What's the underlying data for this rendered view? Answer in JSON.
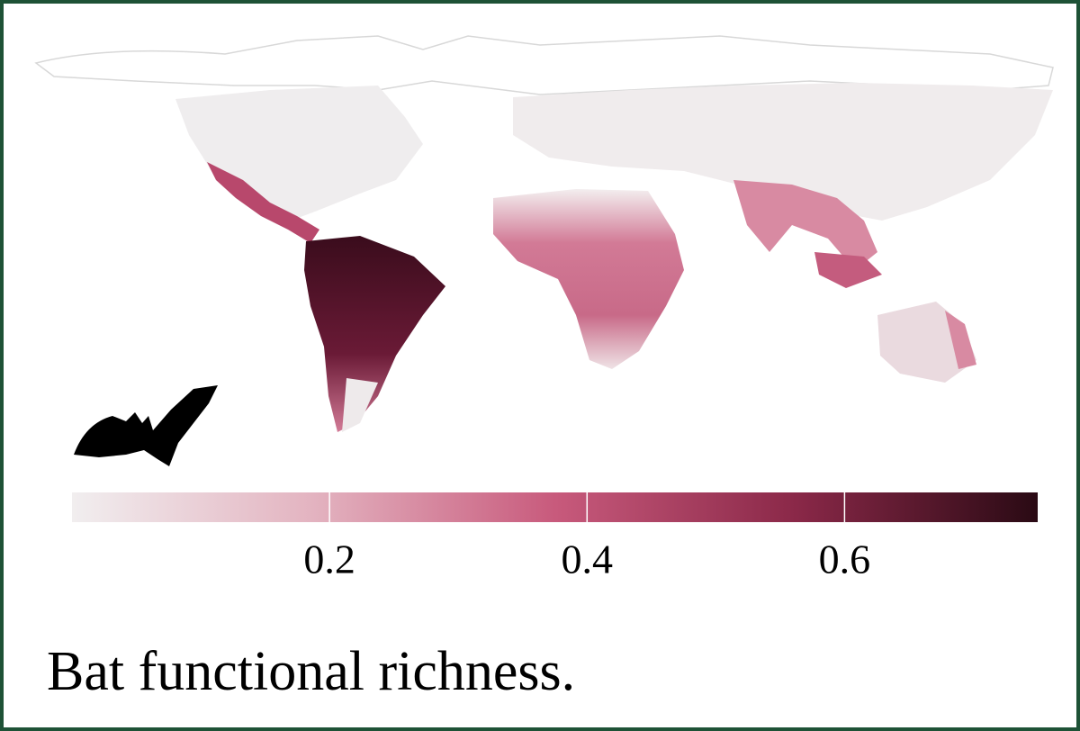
{
  "map": {
    "title": "Bat functional richness.",
    "colorbar": {
      "lim": [
        0,
        0.75
      ],
      "ticks": [
        0.2,
        0.4,
        0.6
      ],
      "colors": [
        "#f1eeef",
        "#e3b3c0",
        "#c85a7c",
        "#8a2848",
        "#2a0a14"
      ]
    }
  }
}
